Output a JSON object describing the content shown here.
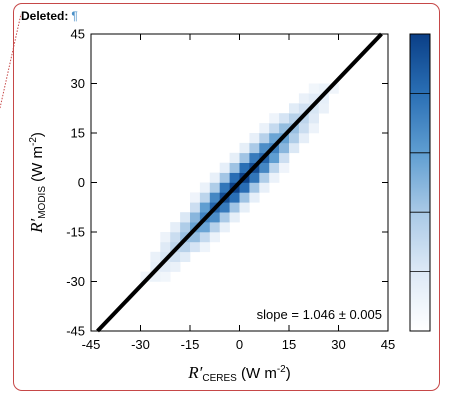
{
  "annotation": {
    "label": "Deleted:",
    "mark": "¶",
    "border_color": "#c64848",
    "mark_color": "#4a90c8"
  },
  "chart_data": {
    "type": "heatmap",
    "title": "",
    "xlabel": {
      "symbol": "R′",
      "subscript": "CERES",
      "units_pre": " (W m",
      "units_sup": "-2",
      "units_post": ")"
    },
    "ylabel": {
      "symbol": "R′",
      "subscript": "MODIS",
      "units_pre": " (W m",
      "units_sup": "-2",
      "units_post": ")"
    },
    "xlim": [
      -45,
      45
    ],
    "ylim": [
      -45,
      45
    ],
    "xticks": [
      -45,
      -30,
      -15,
      0,
      15,
      30,
      45
    ],
    "yticks": [
      -45,
      -30,
      -15,
      0,
      15,
      30,
      45
    ],
    "bin_width": 3,
    "density_model": {
      "center": [
        0,
        0
      ],
      "sigma_along": 16,
      "sigma_across": 2.8,
      "slope": 1.046
    },
    "colormap": [
      "#ffffff",
      "#dde9f6",
      "#a9c9e6",
      "#5f9ed1",
      "#2a6fb5",
      "#0a3f87"
    ],
    "colorbar": {
      "levels": 5
    },
    "fit_line": {
      "slope": 1.046,
      "intercept": 0,
      "color": "#000000"
    },
    "annotation_text": "slope = 1.046 ± 0.005",
    "grid": false
  }
}
